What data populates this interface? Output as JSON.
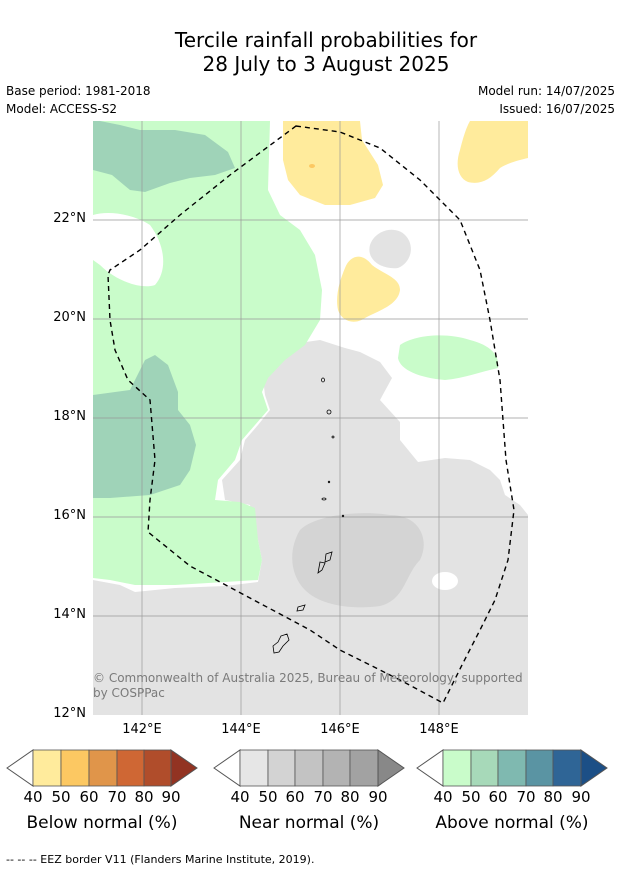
{
  "title": {
    "line1": "Tercile rainfall probabilities for",
    "line2": "28 July to 3 August 2025"
  },
  "meta": {
    "base_period": "Base period: 1981-2018",
    "model": "Model: ACCESS-S2",
    "model_run": "Model run: 14/07/2025",
    "issued": "Issued: 16/07/2025"
  },
  "map": {
    "lat_ticks": [
      "22°N",
      "20°N",
      "18°N",
      "16°N",
      "14°N",
      "12°N"
    ],
    "lon_ticks": [
      "142°E",
      "144°E",
      "146°E",
      "148°E"
    ],
    "copyright": "© Commonwealth of Australia 2025, Bureau of Meteorology, supported by COSPPac",
    "category_colors": {
      "below_40": "#ffeb9c",
      "above_40": "#c9fcca",
      "above_50": "#9fd3b8",
      "near_40": "#e3e3e3",
      "near_50": "#d4d4d4"
    }
  },
  "legend": {
    "ticks": [
      "40",
      "50",
      "60",
      "70",
      "80",
      "90"
    ],
    "below": {
      "caption": "Below normal (%)",
      "colors": [
        "#ffeb9c",
        "#fcc862",
        "#e0954a",
        "#cf6734",
        "#b04d2b",
        "#923322"
      ]
    },
    "near": {
      "caption": "Near normal (%)",
      "colors": [
        "#e6e6e6",
        "#d3d3d3",
        "#c3c3c3",
        "#b3b3b3",
        "#a2a2a2",
        "#888888"
      ]
    },
    "above": {
      "caption": "Above normal (%)",
      "colors": [
        "#c9fcca",
        "#a7d9b9",
        "#7fb9b0",
        "#5a94a3",
        "#2f6596",
        "#1c4f86"
      ]
    }
  },
  "footer": "--  --  -- EEZ border V11 (Flanders Marine Institute, 2019)."
}
